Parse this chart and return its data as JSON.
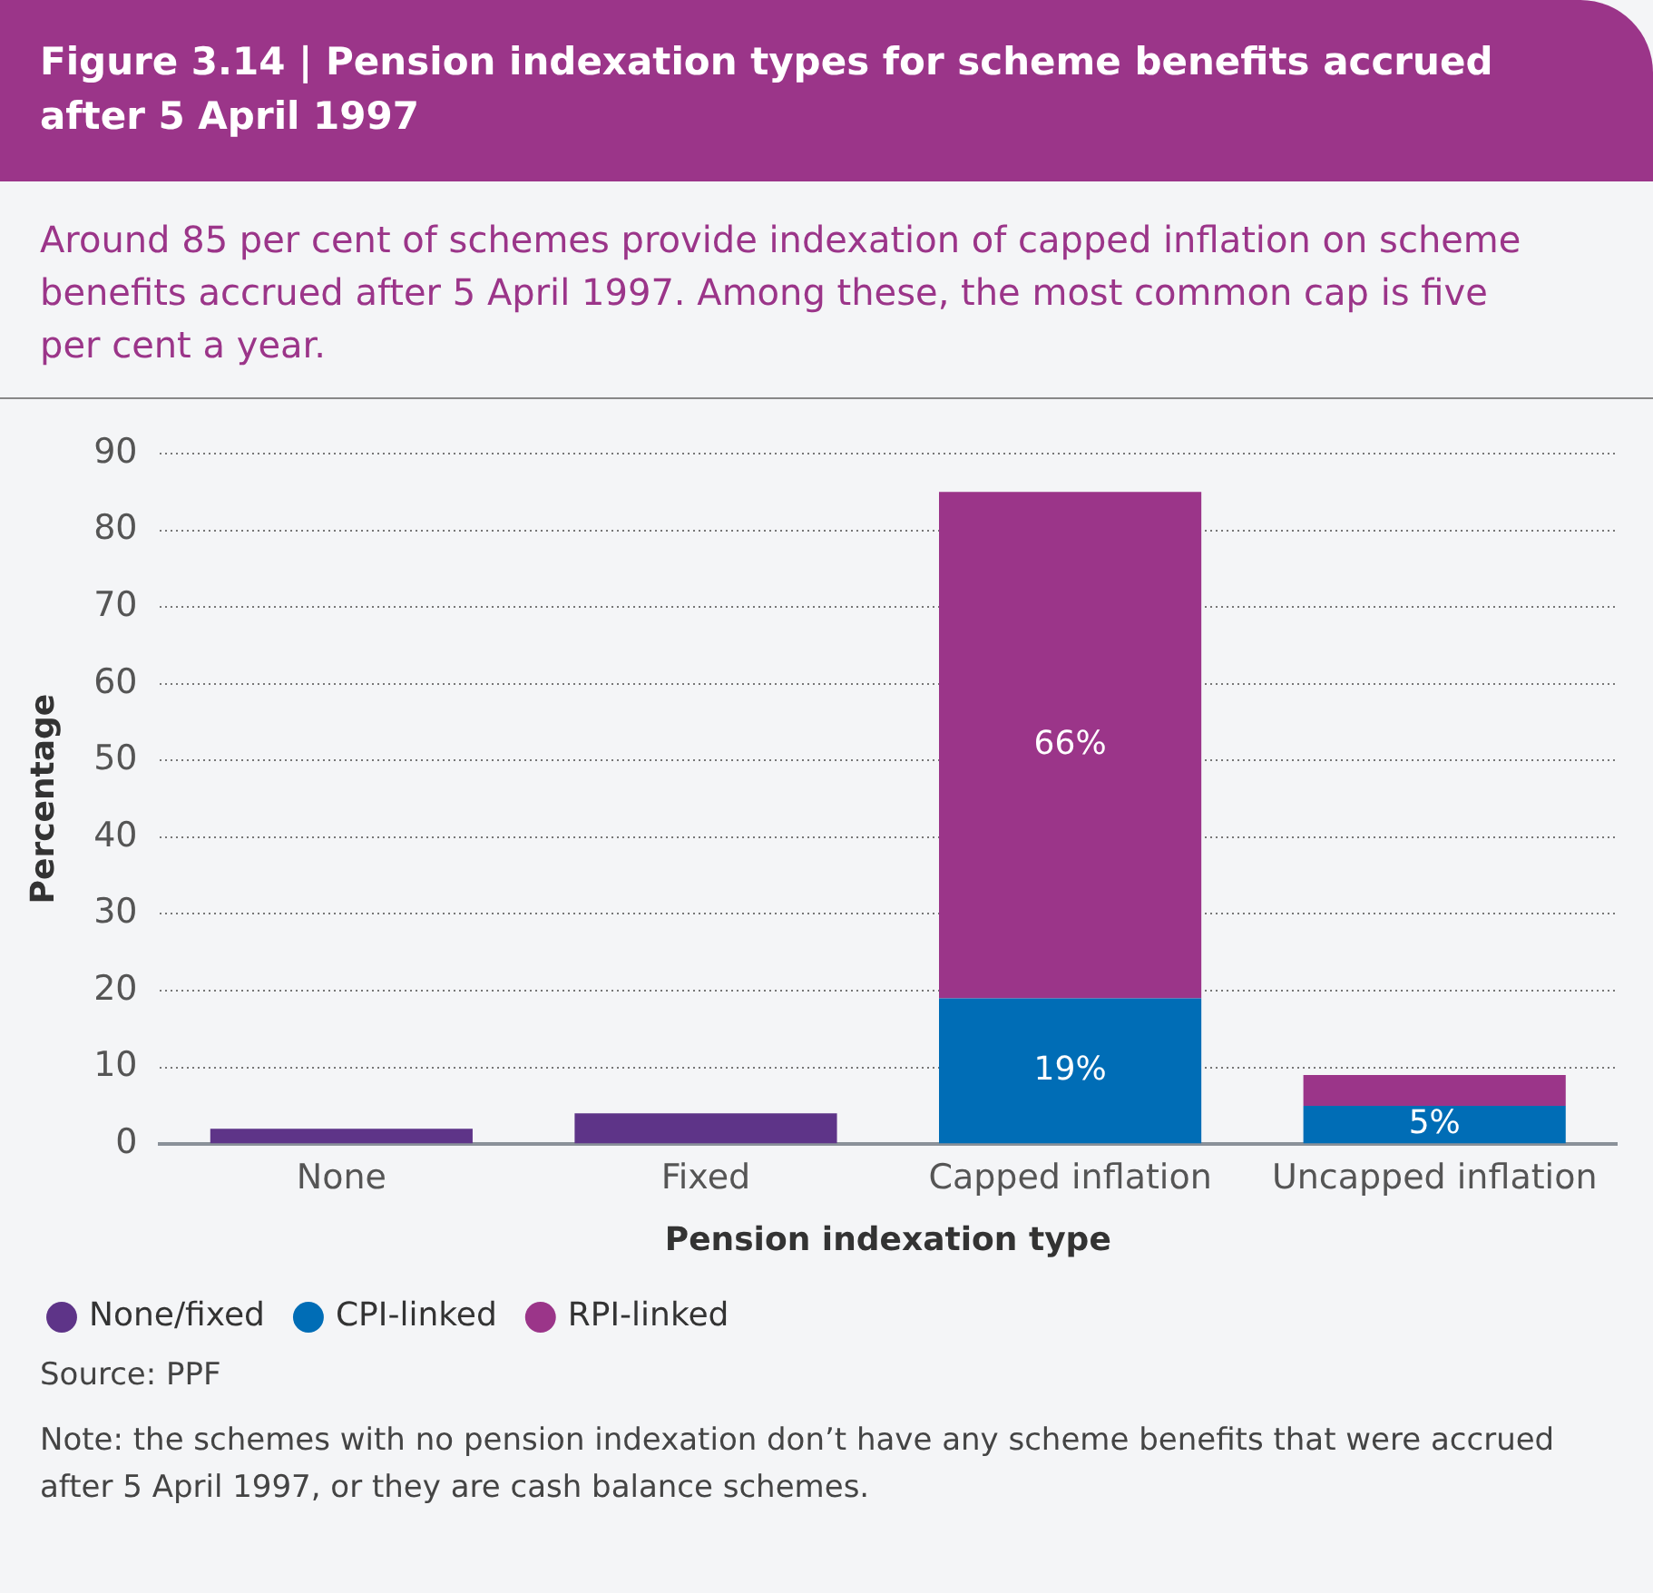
{
  "chart_data": {
    "type": "bar",
    "title": "Figure 3.14 | Pension indexation types for scheme benefits accrued after 5 April 1997",
    "subtitle": "Around 85 per cent of schemes provide indexation of capped inflation on scheme benefits accrued after 5 April 1997. Among these, the most common cap is five per cent a year.",
    "xlabel": "Pension indexation type",
    "ylabel": "Percentage",
    "categories": [
      "None",
      "Fixed",
      "Capped inflation",
      "Uncapped inflation"
    ],
    "stacked": true,
    "series": [
      {
        "name": "None/fixed",
        "color": "#5e3488",
        "values": [
          2,
          4,
          null,
          null
        ]
      },
      {
        "name": "CPI-linked",
        "color": "#006db6",
        "values": [
          null,
          null,
          19,
          5
        ],
        "value_labels": [
          null,
          null,
          "19%",
          "5%"
        ]
      },
      {
        "name": "RPI-linked",
        "color": "#9b3589",
        "values": [
          null,
          null,
          66,
          4
        ],
        "value_labels": [
          null,
          null,
          "66%",
          null
        ]
      }
    ],
    "ylim": [
      0,
      90
    ],
    "yticks": [
      0,
      10,
      20,
      30,
      40,
      50,
      60,
      70,
      80,
      90
    ],
    "grid": "y",
    "legend": "bottom left",
    "annotations": [
      "Source: PPF",
      "Note: the schemes with no pension indexation don’t have any scheme benefits that were accrued after 5 April 1997, or they are cash balance schemes."
    ]
  }
}
